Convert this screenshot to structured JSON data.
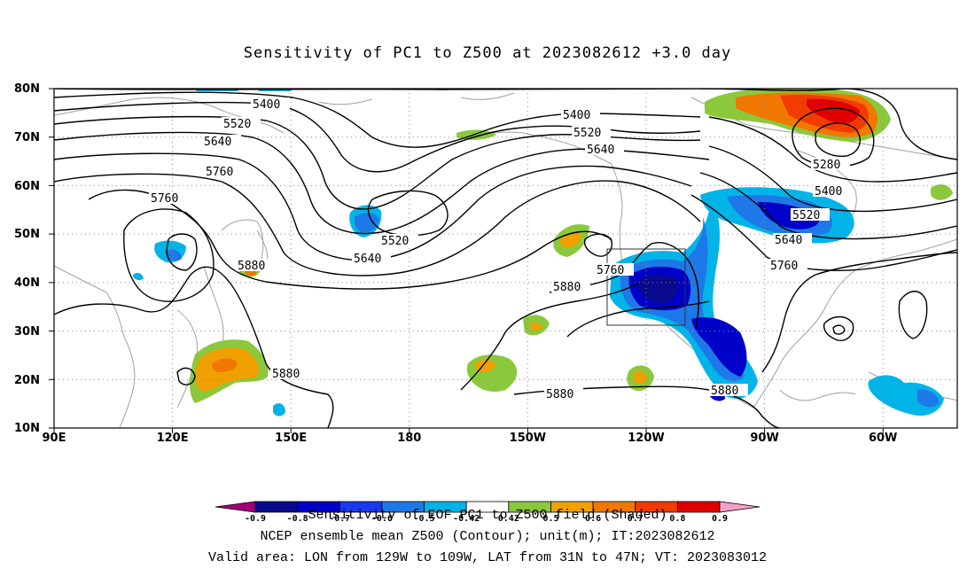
{
  "title": "Sensitivity of PC1 to Z500 at 2023082612 +3.0 day",
  "lat_labels": [
    "80N",
    "70N",
    "60N",
    "50N",
    "40N",
    "30N",
    "20N",
    "10N"
  ],
  "lon_labels": [
    "90E",
    "120E",
    "150E",
    "180",
    "150W",
    "120W",
    "90W",
    "60W"
  ],
  "contour_labels": {
    "c5400a": "5400",
    "c5520a": "5520",
    "c5640a": "5640",
    "c5760a": "5760",
    "c5760b": "5760",
    "c5400b": "5400",
    "c5520b": "5520",
    "c5640b": "5640",
    "c5280": "5280",
    "c5400c": "5400",
    "c5520c": "5520",
    "c5640c": "5640",
    "c5760c": "5760",
    "c5520d": "5520",
    "c5640d": "5640",
    "c5880a": "5880",
    "c5880b": "5880",
    "c5880c": "5880",
    "c5880d": "5880",
    "c5880e": "5880",
    "c5760d": "5760"
  },
  "legend": {
    "title": "Sensitivity of EOF PC1 to Z500 field (Shaded)",
    "labels": [
      "-0.9",
      "-0.8",
      "-0.7",
      "-0.6",
      "-0.5",
      "-0.42",
      "0.42",
      "0.5",
      "0.6",
      "0.7",
      "0.8",
      "0.9"
    ],
    "colors": [
      "#a0007a",
      "#0a0a8f",
      "#0000c8",
      "#1a3aee",
      "#1e78e8",
      "#00b4e8",
      "#ffffff",
      "#8cc83c",
      "#f0a000",
      "#f07800",
      "#f03c00",
      "#e00000",
      "#f5a0c8"
    ]
  },
  "footer": {
    "line1": "NCEP ensemble mean Z500 (Contour); unit(m); IT:2023082612",
    "line2": "Valid area: LON from 129W to 109W, LAT from 31N to 47N; VT: 2023083012"
  },
  "colors": {
    "green": "#8cc83c",
    "orange": "#f0a000",
    "red": "#f03c00",
    "blue": "#0000c8",
    "lightblue": "#00b4e8",
    "coast": "#a0a0a0"
  }
}
